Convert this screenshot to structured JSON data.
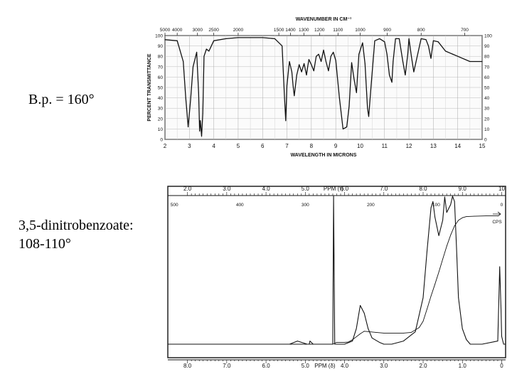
{
  "notes": {
    "boiling_point": "B.p. = 160°",
    "derivative_line1": "3,5-dinitrobenzoate:",
    "derivative_line2": "108-110°"
  },
  "chart_data": [
    {
      "type": "line",
      "subtype": "ir-spectrum",
      "top_axis_title": "WAVENUMBER IN CM⁻¹",
      "xlabel": "WAVELENGTH IN MICRONS",
      "ylabel": "PERCENT TRANSMITTANCE",
      "xlim": [
        2,
        15
      ],
      "ylim": [
        0,
        100
      ],
      "grid": true,
      "x_ticks": [
        "2",
        "3",
        "4",
        "5",
        "6",
        "7",
        "8",
        "9",
        "10",
        "11",
        "12",
        "13",
        "14",
        "15"
      ],
      "y_ticks": [
        "0",
        "10",
        "20",
        "30",
        "40",
        "50",
        "60",
        "70",
        "80",
        "90",
        "100"
      ],
      "y_ticks_right": [
        "0",
        "10",
        "20",
        "30",
        "40",
        "50",
        "60",
        "70",
        "80",
        "90",
        "100"
      ],
      "top_ticks": [
        {
          "label": "5000",
          "wavenumber": 5000
        },
        {
          "label": "4000",
          "wavenumber": 4000
        },
        {
          "label": "3000",
          "wavenumber": 3000
        },
        {
          "label": "2500",
          "wavenumber": 2500
        },
        {
          "label": "2000",
          "wavenumber": 2000
        },
        {
          "label": "1500",
          "wavenumber": 1500
        },
        {
          "label": "1400",
          "wavenumber": 1400
        },
        {
          "label": "1300",
          "wavenumber": 1300
        },
        {
          "label": "1200",
          "wavenumber": 1200
        },
        {
          "label": "1100",
          "wavenumber": 1100
        },
        {
          "label": "1000",
          "wavenumber": 1000
        },
        {
          "label": "900",
          "wavenumber": 900
        },
        {
          "label": "800",
          "wavenumber": 800
        },
        {
          "label": "700",
          "wavenumber": 700
        }
      ],
      "series": [
        {
          "x": [
            2.0,
            2.5,
            2.75,
            2.85,
            2.95,
            3.05,
            3.15,
            3.3,
            3.38,
            3.42,
            3.45,
            3.5,
            3.55,
            3.6,
            3.7,
            3.8,
            4.0,
            4.5,
            5.0,
            6.0,
            6.5,
            6.8,
            6.9,
            6.95,
            7.0,
            7.1,
            7.2,
            7.25,
            7.3,
            7.4,
            7.5,
            7.6,
            7.7,
            7.8,
            7.85,
            7.9,
            8.0,
            8.1,
            8.2,
            8.3,
            8.4,
            8.5,
            8.6,
            8.7,
            8.8,
            8.9,
            9.0,
            9.15,
            9.3,
            9.45,
            9.55,
            9.65,
            9.75,
            9.85,
            9.95,
            10.1,
            10.2,
            10.3,
            10.35,
            10.45,
            10.6,
            10.8,
            11.0,
            11.1,
            11.2,
            11.3,
            11.35,
            11.45,
            11.6,
            11.75,
            11.85,
            11.95,
            12.0,
            12.1,
            12.2,
            12.5,
            12.7,
            12.8,
            12.9,
            13.0,
            13.2,
            13.5,
            14.0,
            14.5,
            15.0
          ],
          "y": [
            96,
            95,
            75,
            40,
            12,
            38,
            70,
            84,
            45,
            8,
            18,
            3,
            25,
            80,
            87,
            85,
            95,
            97,
            98,
            98,
            97,
            90,
            40,
            18,
            52,
            75,
            65,
            52,
            42,
            62,
            72,
            65,
            73,
            62,
            70,
            77,
            72,
            66,
            80,
            82,
            75,
            86,
            75,
            66,
            80,
            84,
            76,
            40,
            10,
            12,
            32,
            74,
            58,
            45,
            82,
            93,
            73,
            30,
            22,
            52,
            95,
            97,
            94,
            82,
            62,
            55,
            75,
            97,
            97,
            75,
            62,
            82,
            97,
            80,
            65,
            97,
            96,
            90,
            78,
            95,
            94,
            85,
            80,
            75,
            75
          ]
        }
      ]
    },
    {
      "type": "line",
      "subtype": "nmr-spectrum",
      "top_axis_title": "PPM (τ)",
      "xlabel": "PPM (δ)",
      "xlim": [
        8.5,
        -0.1
      ],
      "x_ticks": [
        "8.0",
        "7.0",
        "6.0",
        "5.0",
        "4.0",
        "3.0",
        "2.0",
        "1.0",
        "0"
      ],
      "top_ticks": [
        "2.0",
        "3.0",
        "4.0",
        "5.0",
        "6.0",
        "7.0",
        "8.0",
        "9.0",
        "10"
      ],
      "cps_ticks": [
        "500",
        "400",
        "300",
        "200",
        "100",
        "0"
      ],
      "cps_label": "CPS",
      "series": [
        {
          "name": "spectrum",
          "x": [
            8.5,
            5.4,
            5.2,
            4.95,
            4.9,
            4.88,
            4.8,
            4.6,
            4.4,
            4.3,
            4.28,
            4.25,
            4.2,
            4.1,
            4.0,
            3.8,
            3.7,
            3.6,
            3.5,
            3.4,
            3.3,
            3.1,
            3.0,
            2.8,
            2.5,
            2.2,
            2.0,
            1.9,
            1.8,
            1.75,
            1.7,
            1.6,
            1.5,
            1.45,
            1.4,
            1.3,
            1.25,
            1.2,
            1.15,
            1.1,
            1.0,
            0.9,
            0.8,
            0.5,
            0.1,
            0.05,
            0.02,
            0.0,
            -0.05,
            -0.1
          ],
          "y": [
            0.0,
            0.0,
            0.02,
            0.0,
            0.0,
            0.02,
            0.0,
            0.0,
            0.0,
            0.0,
            1.0,
            0.0,
            0.0,
            0.0,
            0.0,
            0.02,
            0.1,
            0.25,
            0.2,
            0.1,
            0.04,
            0.01,
            0.0,
            0.0,
            0.02,
            0.08,
            0.3,
            0.6,
            0.88,
            0.92,
            0.82,
            0.7,
            0.8,
            0.95,
            0.85,
            0.9,
            1.08,
            0.92,
            0.62,
            0.3,
            0.1,
            0.03,
            0.0,
            0.0,
            0.02,
            0.5,
            0.25,
            0.05,
            0.0,
            0.0
          ]
        },
        {
          "name": "integral",
          "x": [
            8.5,
            4.3,
            4.2,
            4.0,
            3.9,
            3.8,
            3.6,
            3.5,
            3.2,
            3.0,
            2.5,
            2.3,
            2.1,
            2.0,
            1.9,
            1.8,
            1.7,
            1.6,
            1.5,
            1.4,
            1.3,
            1.2,
            1.1,
            1.0,
            0.9,
            0.7,
            0.4,
            0.1
          ],
          "y": [
            0,
            0,
            0.05,
            0.05,
            0.06,
            0.12,
            0.28,
            0.35,
            0.32,
            0.3,
            0.3,
            0.32,
            0.45,
            0.62,
            0.95,
            1.3,
            1.62,
            1.95,
            2.3,
            2.65,
            2.95,
            3.2,
            3.35,
            3.42,
            3.45,
            3.46,
            3.47,
            3.47
          ]
        }
      ]
    }
  ]
}
